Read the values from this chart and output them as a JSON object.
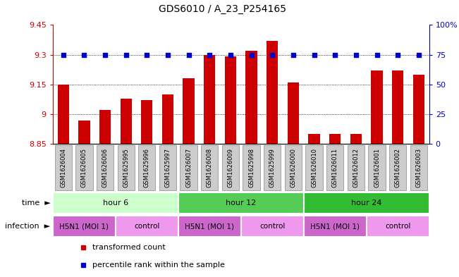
{
  "title": "GDS6010 / A_23_P254165",
  "samples": [
    "GSM1626004",
    "GSM1626005",
    "GSM1626006",
    "GSM1625995",
    "GSM1625996",
    "GSM1625997",
    "GSM1626007",
    "GSM1626008",
    "GSM1626009",
    "GSM1625998",
    "GSM1625999",
    "GSM1626000",
    "GSM1626010",
    "GSM1626011",
    "GSM1626012",
    "GSM1626001",
    "GSM1626002",
    "GSM1626003"
  ],
  "bar_values": [
    9.15,
    8.97,
    9.02,
    9.08,
    9.07,
    9.1,
    9.18,
    9.3,
    9.29,
    9.32,
    9.37,
    9.16,
    8.9,
    8.9,
    8.9,
    9.22,
    9.22,
    9.2
  ],
  "dot_values": [
    75,
    75,
    75,
    75,
    75,
    75,
    75,
    75,
    75,
    75,
    75,
    75,
    75,
    75,
    75,
    75,
    75,
    75
  ],
  "ymin": 8.85,
  "ymax": 9.45,
  "yticks": [
    8.85,
    9.0,
    9.15,
    9.3,
    9.45
  ],
  "ytick_labels": [
    "8.85",
    "9",
    "9.15",
    "9.3",
    "9.45"
  ],
  "y2min": 0,
  "y2max": 100,
  "y2ticks": [
    0,
    25,
    50,
    75,
    100
  ],
  "y2tick_labels": [
    "0",
    "25",
    "50",
    "75",
    "100%"
  ],
  "bar_color": "#cc0000",
  "dot_color": "#0000cc",
  "time_groups": [
    {
      "label": "hour 6",
      "start": 0,
      "end": 6,
      "color": "#ccffcc"
    },
    {
      "label": "hour 12",
      "start": 6,
      "end": 12,
      "color": "#55cc55"
    },
    {
      "label": "hour 24",
      "start": 12,
      "end": 18,
      "color": "#33bb33"
    }
  ],
  "infection_groups": [
    {
      "label": "H5N1 (MOI 1)",
      "start": 0,
      "end": 3,
      "color": "#cc66cc"
    },
    {
      "label": "control",
      "start": 3,
      "end": 6,
      "color": "#ee99ee"
    },
    {
      "label": "H5N1 (MOI 1)",
      "start": 6,
      "end": 9,
      "color": "#cc66cc"
    },
    {
      "label": "control",
      "start": 9,
      "end": 12,
      "color": "#ee99ee"
    },
    {
      "label": "H5N1 (MOI 1)",
      "start": 12,
      "end": 15,
      "color": "#cc66cc"
    },
    {
      "label": "control",
      "start": 15,
      "end": 18,
      "color": "#ee99ee"
    }
  ],
  "legend_items": [
    {
      "label": "transformed count",
      "color": "#cc0000"
    },
    {
      "label": "percentile rank within the sample",
      "color": "#0000cc"
    }
  ],
  "bar_width": 0.55,
  "left_color": "#cc0000",
  "right_color": "#0000cc",
  "label_bg": "#cccccc",
  "label_edge": "#888888"
}
